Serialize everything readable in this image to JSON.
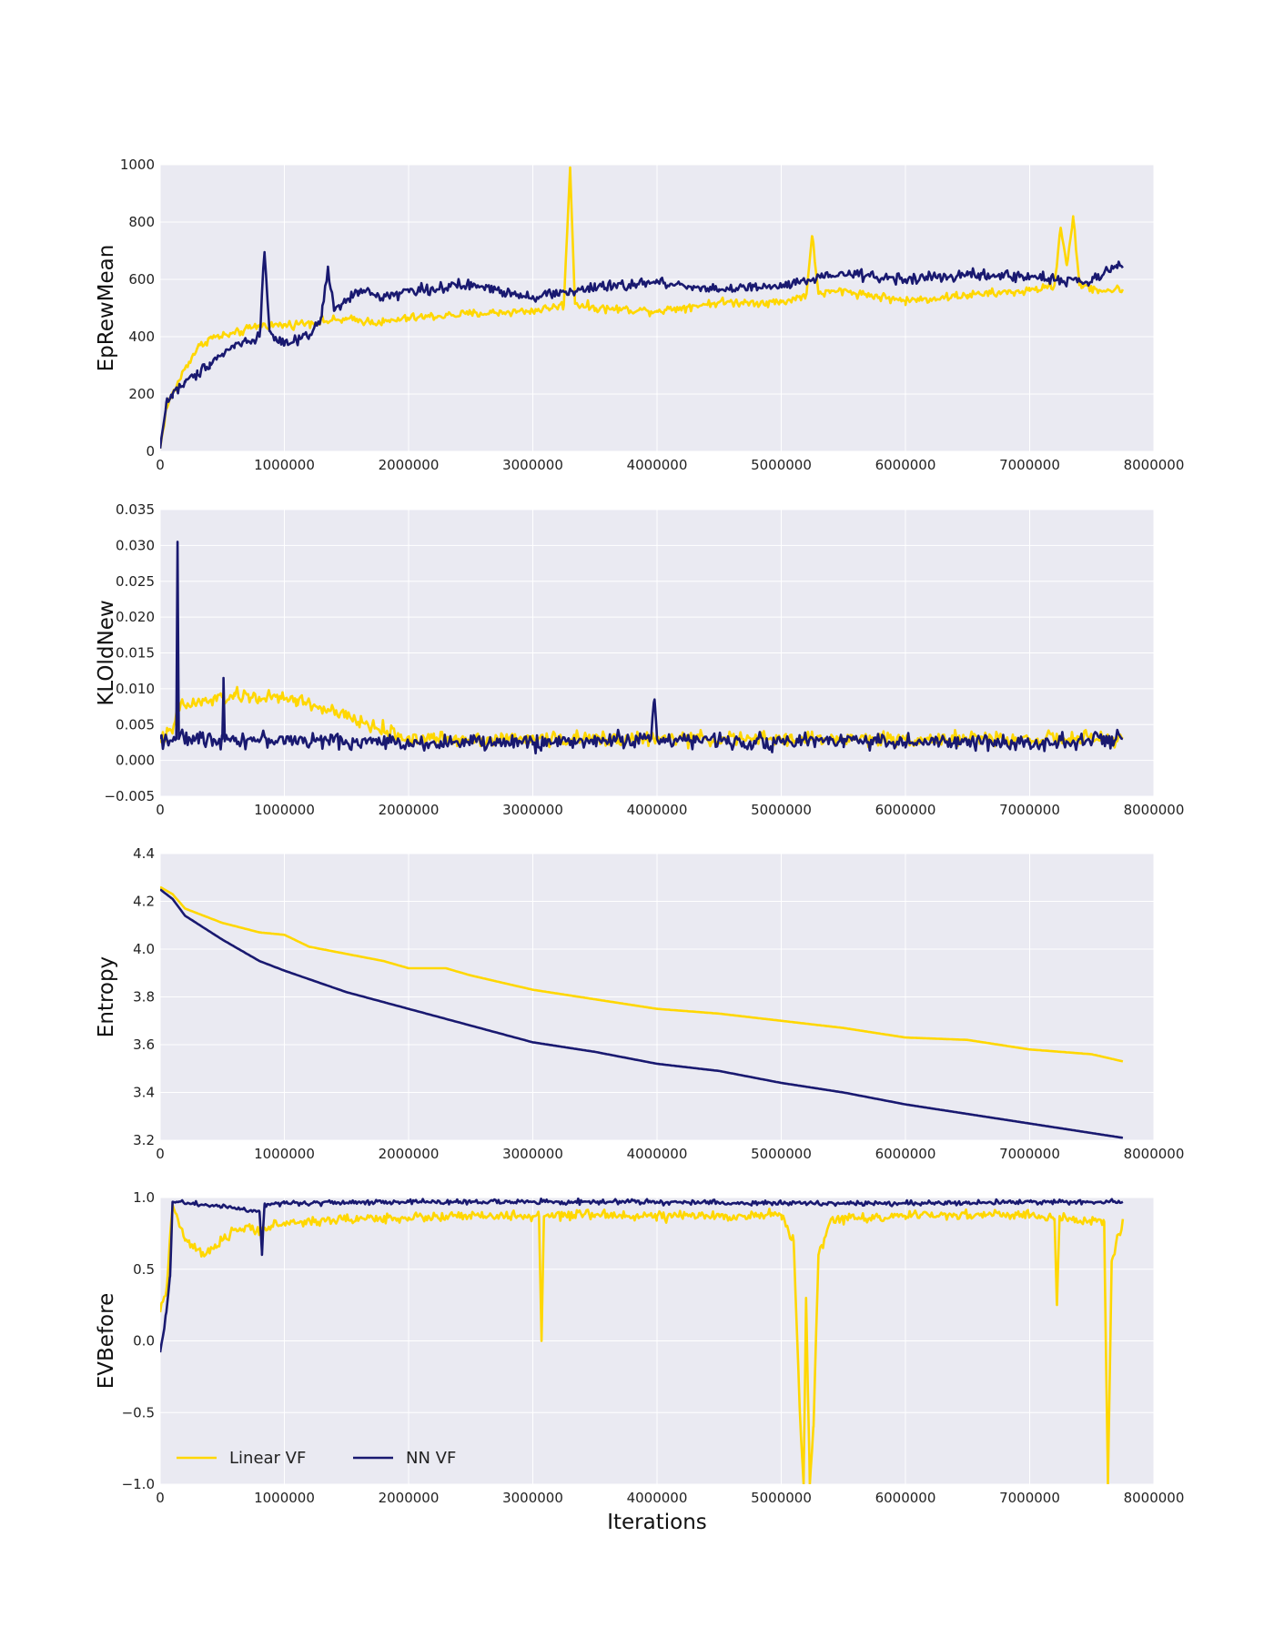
{
  "figure": {
    "xlabel": "Iterations",
    "legend": {
      "placement": "lower-left",
      "entries": [
        {
          "label": "Linear VF",
          "color": "#FFD700"
        },
        {
          "label": "NN VF",
          "color": "#191970"
        }
      ]
    },
    "style": {
      "background": "#EAEAF2",
      "grid_color": "#FFFFFF",
      "grid": true
    }
  },
  "chart_data": [
    {
      "type": "line",
      "title": "",
      "xlabel": "",
      "ylabel": "EpRewMean",
      "xlim": [
        0,
        8000000
      ],
      "ylim": [
        0,
        1000
      ],
      "xticks": [
        0,
        1000000,
        2000000,
        3000000,
        4000000,
        5000000,
        6000000,
        7000000,
        8000000
      ],
      "yticks": [
        0,
        200,
        400,
        600,
        800,
        1000
      ],
      "ytick_labels": [
        "0",
        "200",
        "400",
        "600",
        "800",
        "1000"
      ],
      "series": [
        {
          "name": "Linear VF",
          "color": "#FFD700",
          "noise": 22,
          "points": [
            [
              0,
              10
            ],
            [
              50000,
              150
            ],
            [
              100000,
              200
            ],
            [
              200000,
              290
            ],
            [
              300000,
              360
            ],
            [
              400000,
              395
            ],
            [
              600000,
              410
            ],
            [
              800000,
              440
            ],
            [
              1000000,
              440
            ],
            [
              1200000,
              450
            ],
            [
              1500000,
              460
            ],
            [
              1800000,
              450
            ],
            [
              2000000,
              465
            ],
            [
              2500000,
              480
            ],
            [
              3000000,
              490
            ],
            [
              3250000,
              510
            ],
            [
              3300000,
              990
            ],
            [
              3340000,
              515
            ],
            [
              3500000,
              500
            ],
            [
              4000000,
              490
            ],
            [
              4500000,
              520
            ],
            [
              5000000,
              520
            ],
            [
              5200000,
              545
            ],
            [
              5250000,
              750
            ],
            [
              5300000,
              550
            ],
            [
              5500000,
              560
            ],
            [
              6000000,
              525
            ],
            [
              6500000,
              545
            ],
            [
              7000000,
              560
            ],
            [
              7200000,
              580
            ],
            [
              7250000,
              780
            ],
            [
              7300000,
              650
            ],
            [
              7350000,
              820
            ],
            [
              7400000,
              580
            ],
            [
              7600000,
              560
            ],
            [
              7750000,
              565
            ]
          ]
        },
        {
          "name": "NN VF",
          "color": "#191970",
          "noise": 28,
          "points": [
            [
              0,
              10
            ],
            [
              50000,
              170
            ],
            [
              100000,
              200
            ],
            [
              200000,
              240
            ],
            [
              300000,
              270
            ],
            [
              400000,
              310
            ],
            [
              500000,
              340
            ],
            [
              600000,
              370
            ],
            [
              800000,
              400
            ],
            [
              840000,
              695
            ],
            [
              880000,
              420
            ],
            [
              1000000,
              370
            ],
            [
              1200000,
              400
            ],
            [
              1300000,
              470
            ],
            [
              1350000,
              640
            ],
            [
              1400000,
              490
            ],
            [
              1600000,
              560
            ],
            [
              1800000,
              540
            ],
            [
              2000000,
              560
            ],
            [
              2500000,
              580
            ],
            [
              3000000,
              540
            ],
            [
              3500000,
              570
            ],
            [
              4000000,
              590
            ],
            [
              4500000,
              565
            ],
            [
              5000000,
              575
            ],
            [
              5500000,
              620
            ],
            [
              6000000,
              600
            ],
            [
              6500000,
              615
            ],
            [
              7000000,
              610
            ],
            [
              7500000,
              590
            ],
            [
              7700000,
              650
            ],
            [
              7750000,
              640
            ]
          ]
        }
      ]
    },
    {
      "type": "line",
      "title": "",
      "xlabel": "",
      "ylabel": "KLOldNew",
      "xlim": [
        0,
        8000000
      ],
      "ylim": [
        -0.005,
        0.035
      ],
      "xticks": [
        0,
        1000000,
        2000000,
        3000000,
        4000000,
        5000000,
        6000000,
        7000000,
        8000000
      ],
      "yticks": [
        -0.005,
        0,
        0.005,
        0.01,
        0.015,
        0.02,
        0.025,
        0.03,
        0.035
      ],
      "ytick_labels": [
        "−0.005",
        "0.000",
        "0.005",
        "0.010",
        "0.015",
        "0.020",
        "0.025",
        "0.030",
        "0.035"
      ],
      "series": [
        {
          "name": "Linear VF",
          "color": "#FFD700",
          "noise": 0.0015,
          "points": [
            [
              0,
              0.003
            ],
            [
              100000,
              0.004
            ],
            [
              150000,
              0.0075
            ],
            [
              600000,
              0.009
            ],
            [
              1100000,
              0.0085
            ],
            [
              2000000,
              0.003
            ],
            [
              3000000,
              0.003
            ],
            [
              4000000,
              0.003
            ],
            [
              5000000,
              0.003
            ],
            [
              6000000,
              0.003
            ],
            [
              7000000,
              0.003
            ],
            [
              7750000,
              0.003
            ]
          ]
        },
        {
          "name": "NN VF",
          "color": "#191970",
          "noise": 0.0016,
          "points": [
            [
              0,
              0.003
            ],
            [
              130000,
              0.003
            ],
            [
              140000,
              0.0305
            ],
            [
              150000,
              0.003
            ],
            [
              500000,
              0.003
            ],
            [
              510000,
              0.0115
            ],
            [
              520000,
              0.003
            ],
            [
              2000000,
              0.0025
            ],
            [
              3000000,
              0.0025
            ],
            [
              3950000,
              0.003
            ],
            [
              3980000,
              0.0085
            ],
            [
              4000000,
              0.003
            ],
            [
              5000000,
              0.0025
            ],
            [
              5500000,
              0.003
            ],
            [
              6000000,
              0.0025
            ],
            [
              7000000,
              0.0025
            ],
            [
              7750000,
              0.003
            ]
          ]
        }
      ]
    },
    {
      "type": "line",
      "title": "",
      "xlabel": "",
      "ylabel": "Entropy",
      "xlim": [
        0,
        8000000
      ],
      "ylim": [
        3.2,
        4.4
      ],
      "xticks": [
        0,
        1000000,
        2000000,
        3000000,
        4000000,
        5000000,
        6000000,
        7000000,
        8000000
      ],
      "yticks": [
        3.2,
        3.4,
        3.6,
        3.8,
        4.0,
        4.2,
        4.4
      ],
      "ytick_labels": [
        "3.2",
        "3.4",
        "3.6",
        "3.8",
        "4.0",
        "4.2",
        "4.4"
      ],
      "series": [
        {
          "name": "Linear VF",
          "color": "#FFD700",
          "noise": 0,
          "points": [
            [
              0,
              4.26
            ],
            [
              100000,
              4.23
            ],
            [
              200000,
              4.17
            ],
            [
              500000,
              4.11
            ],
            [
              800000,
              4.07
            ],
            [
              1000000,
              4.06
            ],
            [
              1200000,
              4.01
            ],
            [
              1500000,
              3.98
            ],
            [
              1800000,
              3.95
            ],
            [
              2000000,
              3.92
            ],
            [
              2300000,
              3.92
            ],
            [
              2500000,
              3.89
            ],
            [
              3000000,
              3.83
            ],
            [
              3500000,
              3.79
            ],
            [
              4000000,
              3.75
            ],
            [
              4500000,
              3.73
            ],
            [
              5000000,
              3.7
            ],
            [
              5500000,
              3.67
            ],
            [
              6000000,
              3.63
            ],
            [
              6500000,
              3.62
            ],
            [
              7000000,
              3.58
            ],
            [
              7500000,
              3.56
            ],
            [
              7750000,
              3.53
            ]
          ]
        },
        {
          "name": "NN VF",
          "color": "#191970",
          "noise": 0,
          "points": [
            [
              0,
              4.25
            ],
            [
              100000,
              4.21
            ],
            [
              200000,
              4.14
            ],
            [
              500000,
              4.04
            ],
            [
              800000,
              3.95
            ],
            [
              1000000,
              3.91
            ],
            [
              1500000,
              3.82
            ],
            [
              2000000,
              3.75
            ],
            [
              2500000,
              3.68
            ],
            [
              3000000,
              3.61
            ],
            [
              3500000,
              3.57
            ],
            [
              4000000,
              3.52
            ],
            [
              4500000,
              3.49
            ],
            [
              5000000,
              3.44
            ],
            [
              5500000,
              3.4
            ],
            [
              6000000,
              3.35
            ],
            [
              6500000,
              3.31
            ],
            [
              7000000,
              3.27
            ],
            [
              7500000,
              3.23
            ],
            [
              7750000,
              3.21
            ]
          ]
        }
      ]
    },
    {
      "type": "line",
      "title": "",
      "xlabel": "Iterations",
      "ylabel": "EVBefore",
      "xlim": [
        0,
        8000000
      ],
      "ylim": [
        -1.0,
        1.0
      ],
      "xticks": [
        0,
        1000000,
        2000000,
        3000000,
        4000000,
        5000000,
        6000000,
        7000000,
        8000000
      ],
      "yticks": [
        -1.0,
        -0.5,
        0.0,
        0.5,
        1.0
      ],
      "ytick_labels": [
        "−1.0",
        "−0.5",
        "0.0",
        "0.5",
        "1.0"
      ],
      "series": [
        {
          "name": "Linear VF",
          "color": "#FFD700",
          "noise": 0.05,
          "points": [
            [
              0,
              0.2
            ],
            [
              50000,
              0.35
            ],
            [
              100000,
              0.95
            ],
            [
              200000,
              0.7
            ],
            [
              350000,
              0.6
            ],
            [
              450000,
              0.65
            ],
            [
              600000,
              0.78
            ],
            [
              800000,
              0.78
            ],
            [
              1000000,
              0.82
            ],
            [
              1500000,
              0.85
            ],
            [
              2000000,
              0.86
            ],
            [
              2500000,
              0.87
            ],
            [
              3000000,
              0.87
            ],
            [
              3050000,
              0.87
            ],
            [
              3070000,
              0.0
            ],
            [
              3090000,
              0.87
            ],
            [
              3500000,
              0.88
            ],
            [
              4000000,
              0.87
            ],
            [
              4500000,
              0.87
            ],
            [
              5000000,
              0.88
            ],
            [
              5100000,
              0.7
            ],
            [
              5150000,
              -0.5
            ],
            [
              5180000,
              -1.0
            ],
            [
              5200000,
              0.3
            ],
            [
              5230000,
              -1.0
            ],
            [
              5260000,
              -0.6
            ],
            [
              5300000,
              0.6
            ],
            [
              5400000,
              0.85
            ],
            [
              6000000,
              0.87
            ],
            [
              6500000,
              0.88
            ],
            [
              7000000,
              0.88
            ],
            [
              7200000,
              0.85
            ],
            [
              7220000,
              0.25
            ],
            [
              7240000,
              0.85
            ],
            [
              7600000,
              0.83
            ],
            [
              7630000,
              -1.0
            ],
            [
              7660000,
              0.55
            ],
            [
              7750000,
              0.85
            ]
          ]
        },
        {
          "name": "NN VF",
          "color": "#191970",
          "noise": 0.025,
          "points": [
            [
              0,
              -0.08
            ],
            [
              50000,
              0.2
            ],
            [
              80000,
              0.45
            ],
            [
              100000,
              0.97
            ],
            [
              500000,
              0.94
            ],
            [
              800000,
              0.9
            ],
            [
              820000,
              0.6
            ],
            [
              840000,
              0.95
            ],
            [
              1000000,
              0.96
            ],
            [
              2000000,
              0.97
            ],
            [
              3000000,
              0.97
            ],
            [
              4000000,
              0.97
            ],
            [
              5000000,
              0.96
            ],
            [
              6000000,
              0.96
            ],
            [
              7000000,
              0.97
            ],
            [
              7750000,
              0.97
            ]
          ]
        }
      ]
    }
  ]
}
